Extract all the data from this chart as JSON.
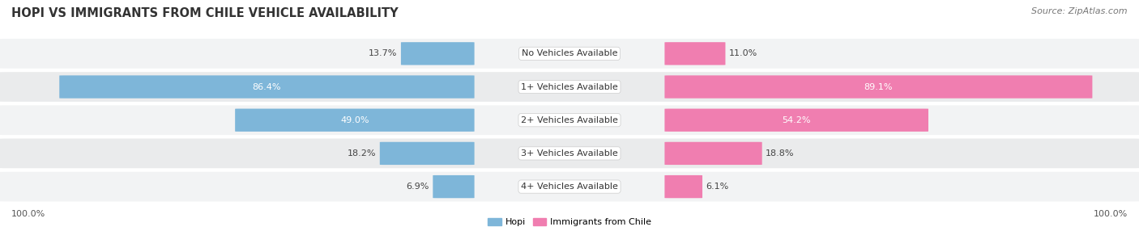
{
  "title": "HOPI VS IMMIGRANTS FROM CHILE VEHICLE AVAILABILITY",
  "source": "Source: ZipAtlas.com",
  "categories": [
    "No Vehicles Available",
    "1+ Vehicles Available",
    "2+ Vehicles Available",
    "3+ Vehicles Available",
    "4+ Vehicles Available"
  ],
  "hopi_values": [
    13.7,
    86.4,
    49.0,
    18.2,
    6.9
  ],
  "chile_values": [
    11.0,
    89.1,
    54.2,
    18.8,
    6.1
  ],
  "hopi_color": "#7EB6D9",
  "chile_color": "#F07EB0",
  "hopi_label": "Hopi",
  "chile_label": "Immigrants from Chile",
  "max_value": 100.0,
  "figsize": [
    14.06,
    2.86
  ],
  "dpi": 100,
  "row_bg_odd": "#EAEBEC",
  "row_bg_even": "#F2F3F4",
  "title_fontsize": 10.5,
  "source_fontsize": 8,
  "label_fontsize": 8,
  "value_fontsize": 8
}
